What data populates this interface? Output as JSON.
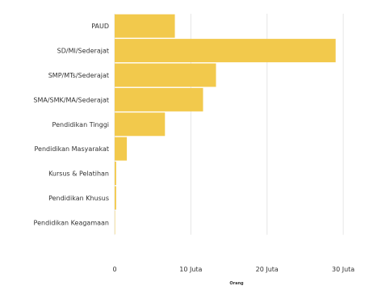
{
  "chart_data": {
    "type": "bar",
    "orientation": "horizontal",
    "categories": [
      "PAUD",
      "SD/MI/Sederajat",
      "SMP/MTs/Sederajat",
      "SMA/SMK/MA/Sederajat",
      "Pendidikan Tinggi",
      "Pendidikan Masyarakat",
      "Kursus & Pelatihan",
      "Pendidikan Khusus",
      "Pendidikan Keagamaan"
    ],
    "values": [
      7900000,
      29000000,
      13300000,
      11600000,
      6600000,
      1600000,
      200000,
      200000,
      50000
    ],
    "xlim": [
      0,
      32000000
    ],
    "xticks": [
      0,
      10000000,
      20000000,
      30000000
    ],
    "xtick_labels": [
      "0",
      "10 Juta",
      "20 Juta",
      "30 Juta"
    ],
    "xlabel": "Orang",
    "grid": true,
    "bar_color": "#f2c94c"
  }
}
